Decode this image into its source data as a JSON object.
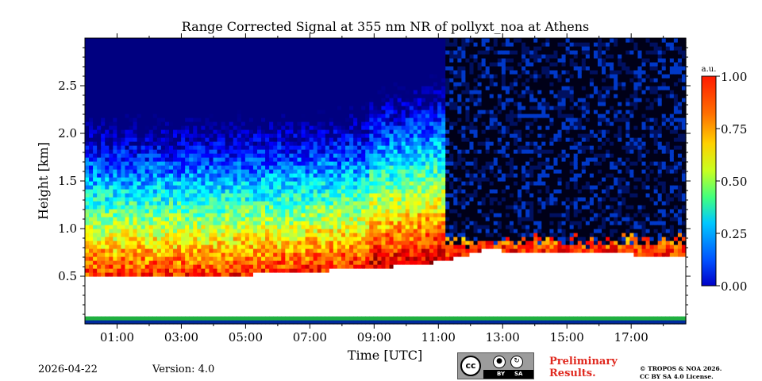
{
  "chart_data": {
    "type": "heatmap",
    "title": "Range Corrected Signal at 355 nm NR of pollyxt_noa at Athens",
    "xlabel": "Time [UTC]",
    "ylabel": "Height [km]",
    "xlim": [
      0.0,
      18.7
    ],
    "ylim": [
      0.0,
      3.0
    ],
    "xticks": [
      1,
      3,
      5,
      7,
      9,
      11,
      13,
      15,
      17
    ],
    "xtick_labels": [
      "01:00",
      "03:00",
      "05:00",
      "07:00",
      "09:00",
      "11:00",
      "13:00",
      "15:00",
      "17:00"
    ],
    "yticks": [
      0.5,
      1.0,
      1.5,
      2.0,
      2.5
    ],
    "ytick_labels": [
      "0.5",
      "1.0",
      "1.5",
      "2.0",
      "2.5"
    ],
    "colorbar": {
      "unit_label": "a.u.",
      "range": [
        0.0,
        1.0
      ],
      "ticks": [
        0.0,
        0.25,
        0.5,
        0.75,
        1.0
      ],
      "tick_labels": [
        "0.00",
        "0.25",
        "0.50",
        "0.75",
        "1.00"
      ],
      "colormap": "jet"
    },
    "features": {
      "saturated_layer_top_km": [
        {
          "time": 0.0,
          "height": 0.48
        },
        {
          "time": 4.0,
          "height": 0.5
        },
        {
          "time": 7.0,
          "height": 0.55
        },
        {
          "time": 9.5,
          "height": 0.6
        },
        {
          "time": 11.0,
          "height": 0.65
        },
        {
          "time": 12.5,
          "height": 0.78
        },
        {
          "time": 14.0,
          "height": 0.75
        },
        {
          "time": 16.0,
          "height": 0.75
        },
        {
          "time": 18.7,
          "height": 0.7
        }
      ],
      "aerosol_layer_top_km": [
        {
          "time": 0.0,
          "height": 0.95
        },
        {
          "time": 4.0,
          "height": 0.95
        },
        {
          "time": 7.0,
          "height": 1.0
        },
        {
          "time": 9.5,
          "height": 1.1
        },
        {
          "time": 11.0,
          "height": 1.2
        }
      ],
      "low_signal_region": {
        "start_time": 11.2,
        "end_time": 18.7,
        "bottom_height_km": 0.8
      },
      "near_ground_strip_km": [
        0.0,
        0.1
      ]
    }
  },
  "footer": {
    "date": "2026-04-22",
    "version": "Version: 4.0",
    "license_badge": {
      "cc": "cc",
      "by": "BY",
      "sa": "SA"
    },
    "preliminary": [
      "Preliminary",
      "Results."
    ],
    "copyright": [
      "© TROPOS & NOA 2026.",
      "CC BY SA 4.0 License."
    ]
  },
  "colors": {
    "low": "#00007f",
    "high": "#ff1a00",
    "saturated": "#ffffff",
    "preliminary_text": "#e0281e"
  }
}
